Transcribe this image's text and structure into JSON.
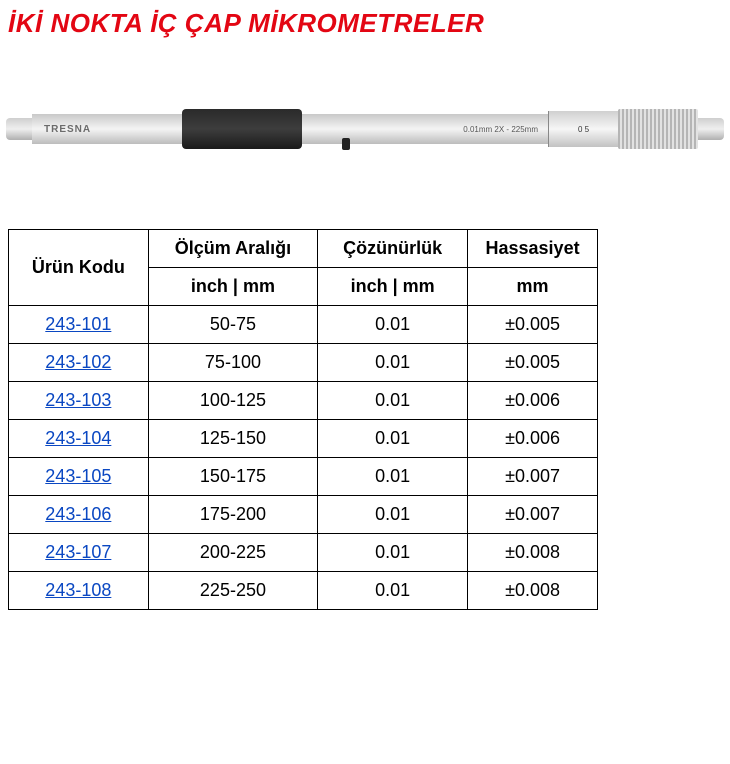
{
  "title": "İKİ NOKTA İÇ ÇAP MİKROMETRELER",
  "tool": {
    "brand": "TRESNA",
    "marking": "0.01mm 2X - 225mm",
    "scale_mark": "0  5"
  },
  "table": {
    "headers": {
      "code": "Ürün Kodu",
      "range": "Ölçüm Aralığı",
      "resolution": "Çözünürlük",
      "accuracy": "Hassasiyet"
    },
    "subheaders": {
      "range_unit": "inch | mm",
      "resolution_unit": "inch | mm",
      "accuracy_unit": "mm"
    },
    "rows": [
      {
        "code": "243-101",
        "range": "50-75",
        "res": "0.01",
        "acc": "±0.005"
      },
      {
        "code": "243-102",
        "range": "75-100",
        "res": "0.01",
        "acc": "±0.005"
      },
      {
        "code": "243-103",
        "range": "100-125",
        "res": "0.01",
        "acc": "±0.006"
      },
      {
        "code": "243-104",
        "range": "125-150",
        "res": "0.01",
        "acc": "±0.006"
      },
      {
        "code": "243-105",
        "range": "150-175",
        "res": "0.01",
        "acc": "±0.007"
      },
      {
        "code": "243-106",
        "range": "175-200",
        "res": "0.01",
        "acc": "±0.007"
      },
      {
        "code": "243-107",
        "range": "200-225",
        "res": "0.01",
        "acc": "±0.008"
      },
      {
        "code": "243-108",
        "range": "225-250",
        "res": "0.01",
        "acc": "±0.008"
      }
    ]
  },
  "colors": {
    "title": "#e30613",
    "link": "#0a47c2",
    "border": "#000000",
    "background": "#ffffff"
  }
}
